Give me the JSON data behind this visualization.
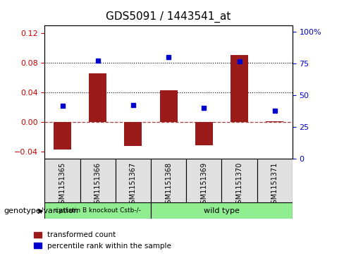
{
  "title": "GDS5091 / 1443541_at",
  "samples": [
    "GSM1151365",
    "GSM1151366",
    "GSM1151367",
    "GSM1151368",
    "GSM1151369",
    "GSM1151370",
    "GSM1151371"
  ],
  "red_values": [
    -0.038,
    0.065,
    -0.033,
    0.043,
    -0.032,
    0.09,
    0.001
  ],
  "blue_values": [
    0.022,
    0.083,
    0.023,
    0.087,
    0.019,
    0.082,
    0.015
  ],
  "ylim_left": [
    -0.05,
    0.13
  ],
  "ylim_right": [
    0,
    105
  ],
  "yticks_left": [
    -0.04,
    0.0,
    0.04,
    0.08,
    0.12
  ],
  "yticks_right": [
    0,
    25,
    50,
    75,
    100
  ],
  "ytick_labels_right": [
    "0",
    "25",
    "50",
    "75",
    "100%"
  ],
  "hlines": [
    0.08,
    0.04
  ],
  "zero_line": 0.0,
  "bar_color": "#9B1B1B",
  "dot_color": "#0000CC",
  "bar_width": 0.5,
  "group1_indices": [
    0,
    1,
    2
  ],
  "group2_indices": [
    3,
    4,
    5,
    6
  ],
  "group1_label": "cystatin B knockout Cstb-/-",
  "group2_label": "wild type",
  "group_color": "#90EE90",
  "genotype_label": "genotype/variation",
  "legend_red": "transformed count",
  "legend_blue": "percentile rank within the sample",
  "left_tick_color": "#CC0000",
  "right_tick_color": "#0000CC",
  "background_color": "#E0E0E0",
  "plot_bg": "white"
}
